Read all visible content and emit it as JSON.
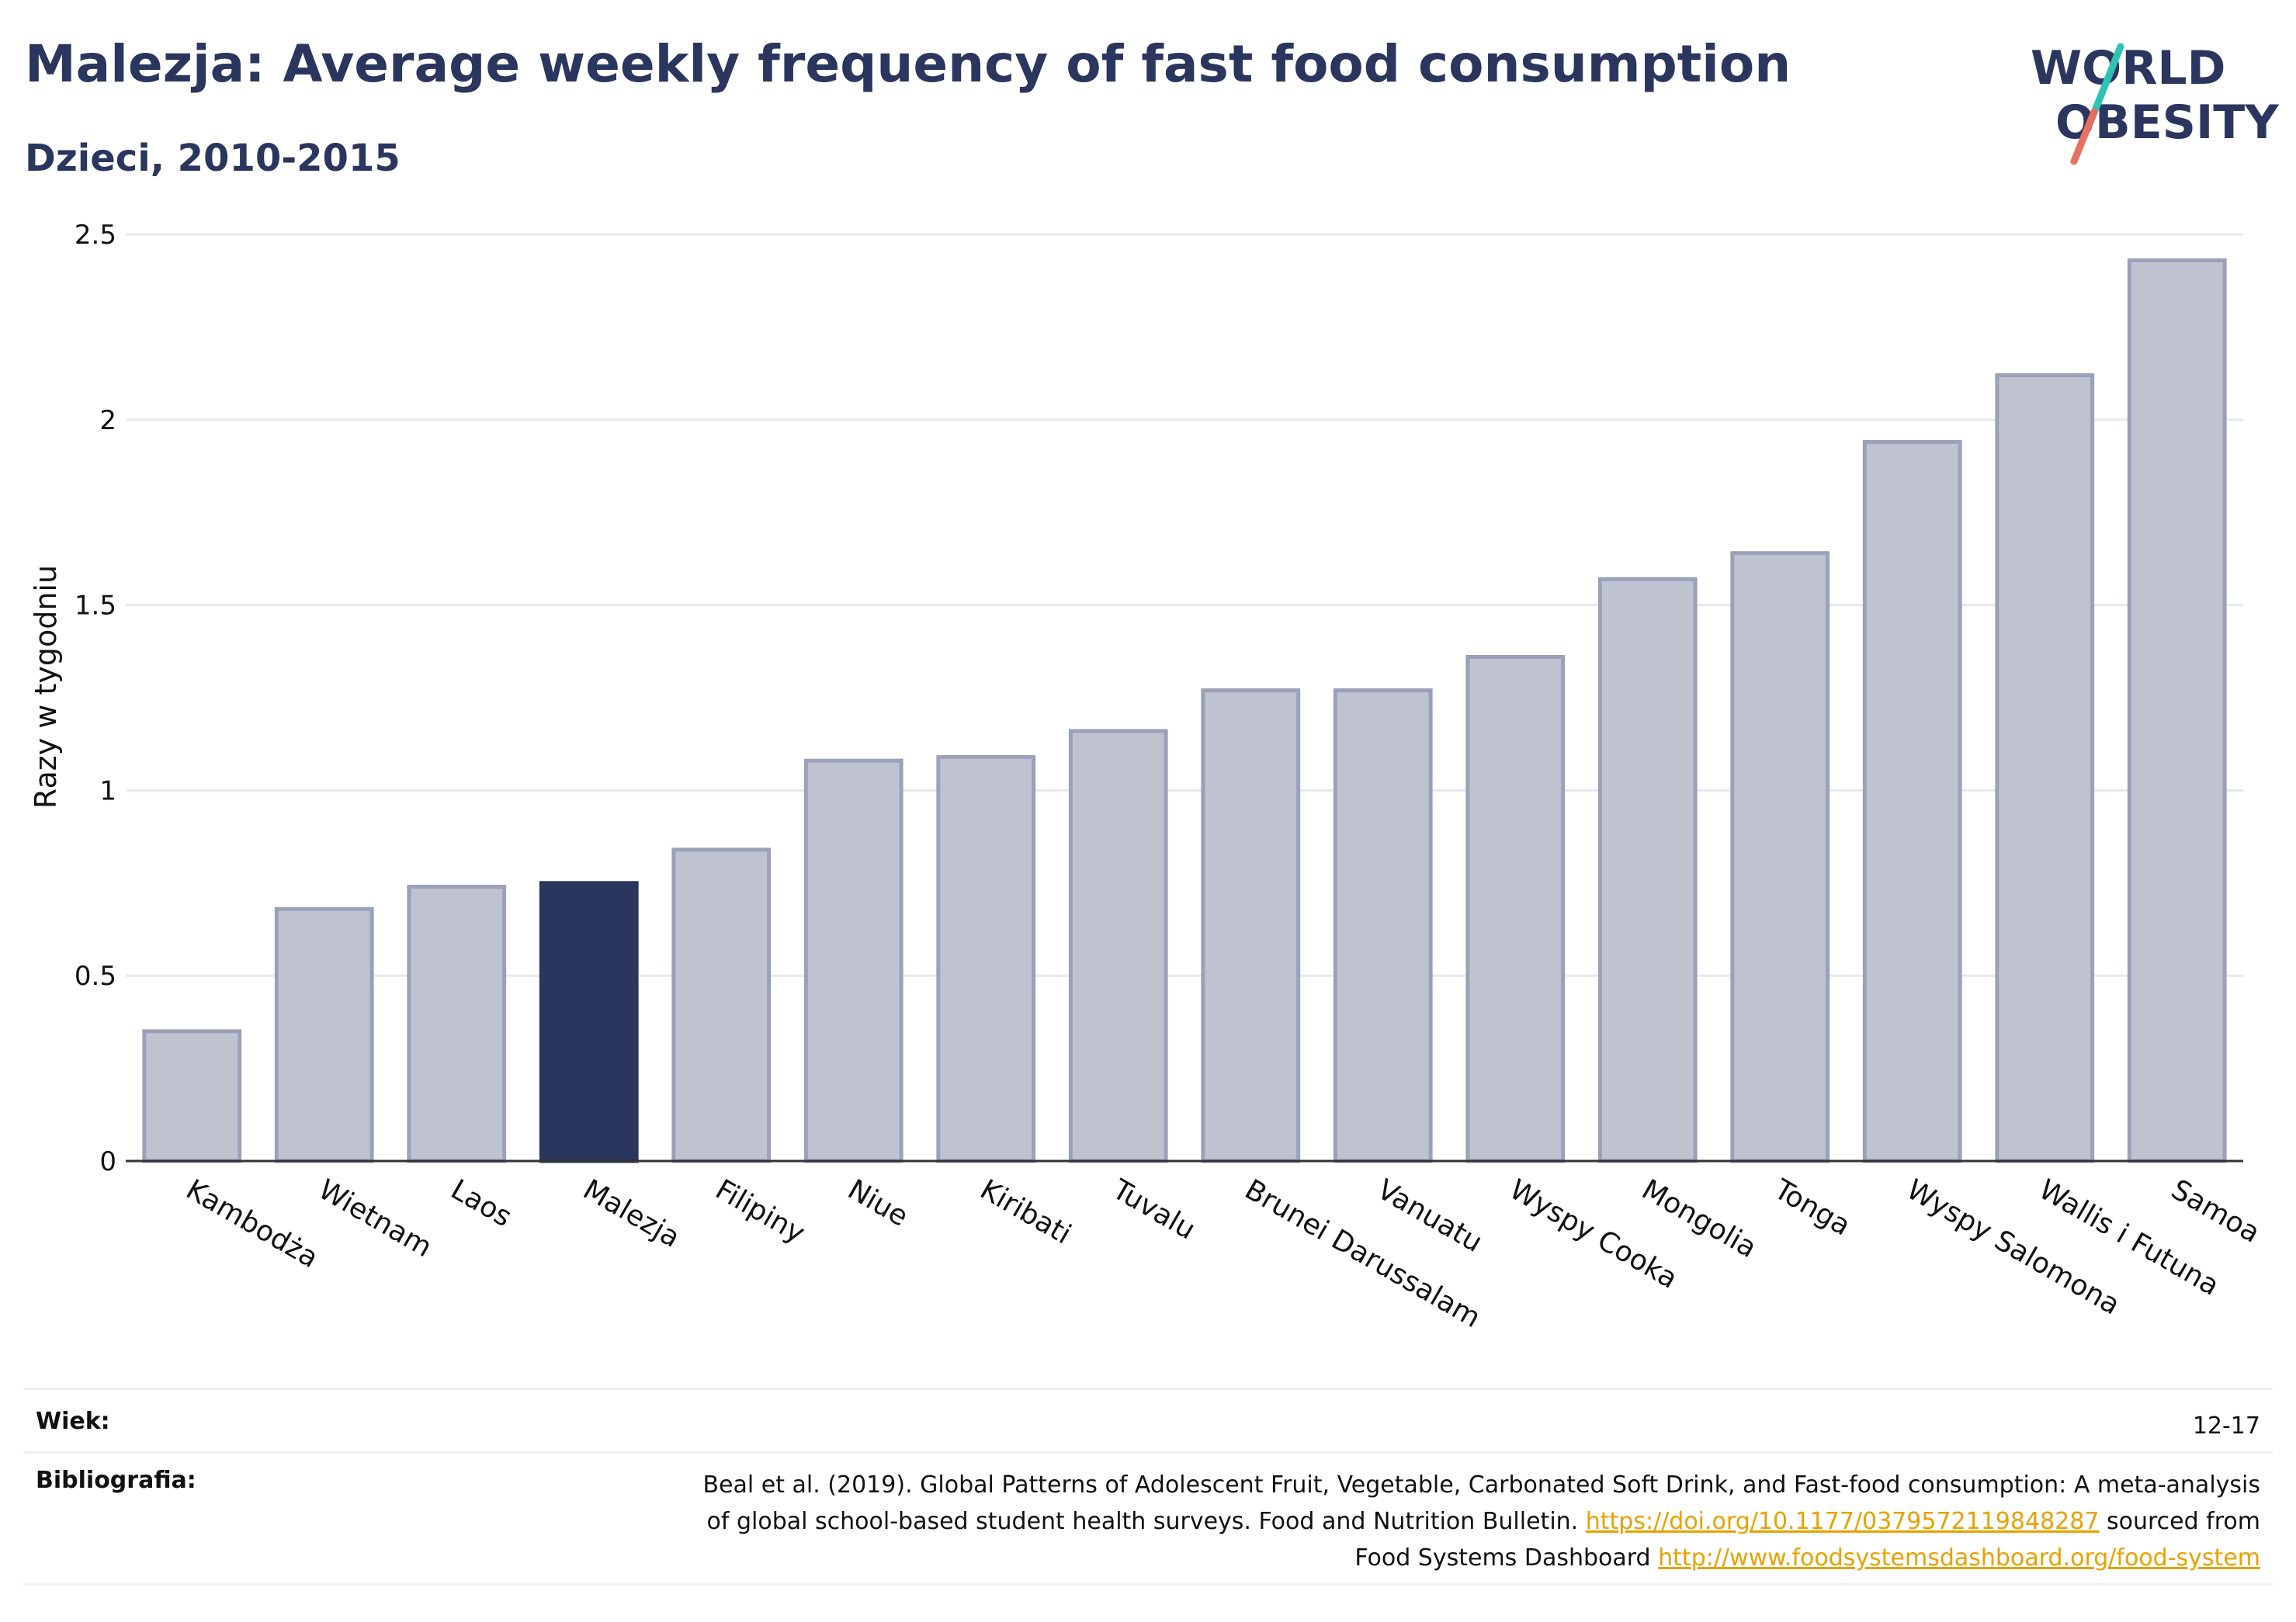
{
  "header": {
    "title": "Malezja: Average weekly frequency of fast food consumption",
    "subtitle": "Dzieci, 2010-2015"
  },
  "logo": {
    "line1": "WORLD",
    "line2": "OBESITY",
    "colors": {
      "text": "#2b365e",
      "slash_top": "#2cc2b4",
      "slash_bottom": "#e8705f"
    }
  },
  "chart_data": {
    "type": "bar",
    "categories": [
      "Kambodża",
      "Wietnam",
      "Laos",
      "Malezja",
      "Filipiny",
      "Niue",
      "Kiribati",
      "Tuvalu",
      "Brunei Darussalam",
      "Vanuatu",
      "Wyspy Cooka",
      "Mongolia",
      "Tonga",
      "Wyspy Salomona",
      "Wallis i Futuna",
      "Samoa"
    ],
    "values": [
      0.35,
      0.68,
      0.74,
      0.75,
      0.84,
      1.08,
      1.09,
      1.16,
      1.27,
      1.27,
      1.36,
      1.57,
      1.64,
      1.94,
      2.12,
      2.43
    ],
    "highlight": "Malezja",
    "ylabel": "Razy w tygodniu",
    "ylim": [
      0,
      2.5
    ],
    "yticks": [
      0,
      0.5,
      1,
      1.5,
      2,
      2.5
    ],
    "ytick_labels": [
      "0",
      "0.5",
      "1",
      "1.5",
      "2",
      "2.5"
    ],
    "grid": true,
    "colors": {
      "bar": "#bfc3d0",
      "bar_border": "#9aa1b8",
      "highlight": "#2b365e",
      "grid": "#e6e8f0"
    }
  },
  "footer": {
    "age_label": "Wiek:",
    "age_value": "12-17",
    "bib_label": "Bibliografia:",
    "bib_text1": "Beal et al. (2019). Global Patterns of Adolescent Fruit, Vegetable, Carbonated Soft Drink, and Fast-food consumption: A meta-analysis",
    "bib_text2": "of global school-based student health surveys. Food and Nutrition Bulletin.",
    "bib_link1": "https://doi.org/10.1177/0379572119848287",
    "bib_text3": "sourced from",
    "bib_text4": "Food Systems Dashboard",
    "bib_link2": "http://www.foodsystemsdashboard.org/food-system"
  }
}
